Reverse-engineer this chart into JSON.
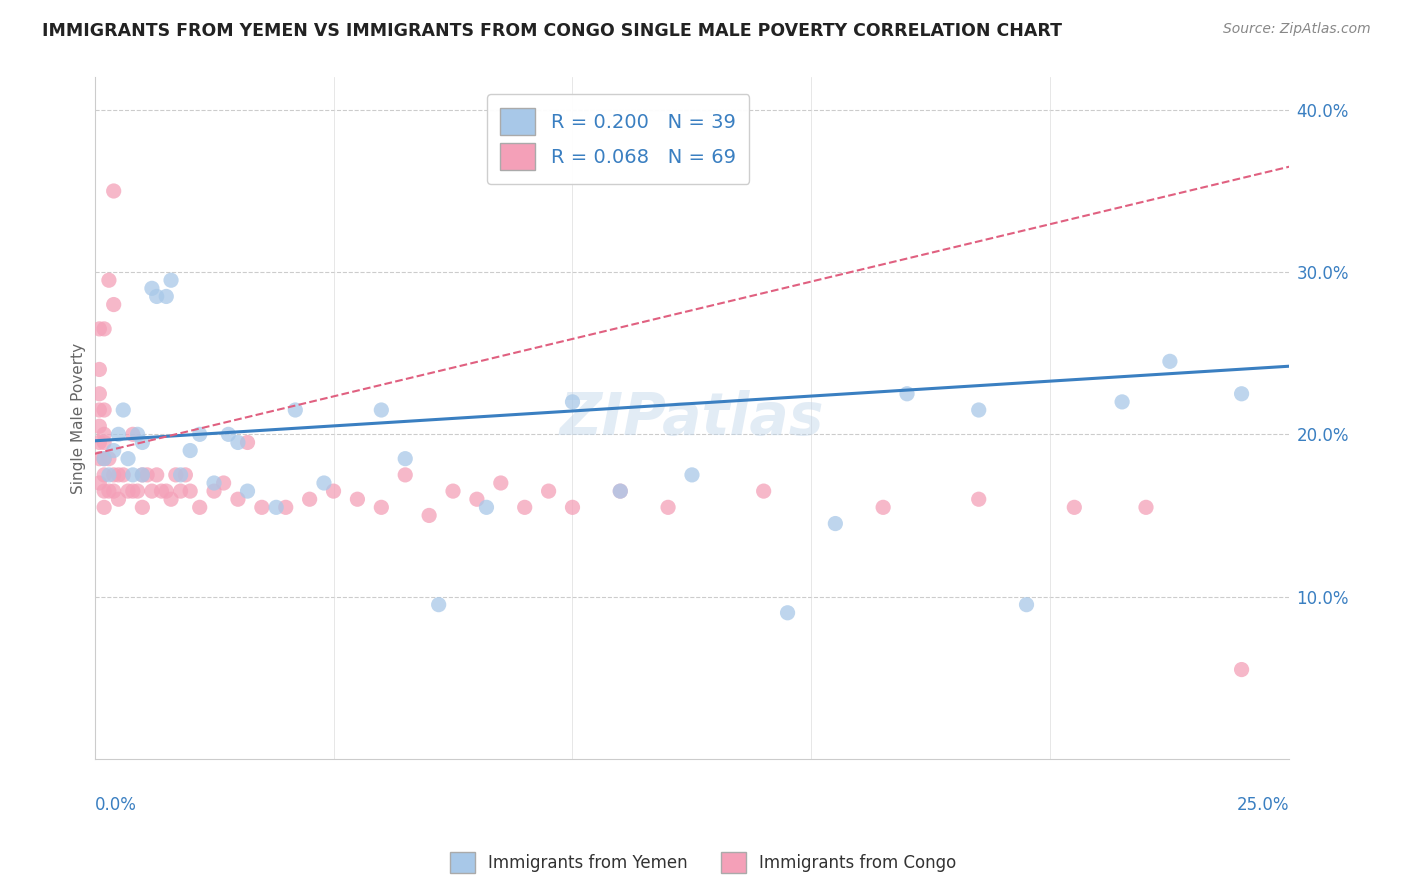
{
  "title": "IMMIGRANTS FROM YEMEN VS IMMIGRANTS FROM CONGO SINGLE MALE POVERTY CORRELATION CHART",
  "source": "Source: ZipAtlas.com",
  "ylabel": "Single Male Poverty",
  "xlim": [
    0.0,
    0.25
  ],
  "ylim": [
    0.0,
    0.42
  ],
  "yemen_R": 0.2,
  "yemen_N": 39,
  "congo_R": 0.068,
  "congo_N": 69,
  "yemen_color": "#a8c8e8",
  "congo_color": "#f4a0b8",
  "yemen_line_color": "#3a7fc1",
  "congo_line_color": "#e06080",
  "watermark": "ZIPatlas",
  "yemen_points_x": [
    0.002,
    0.003,
    0.004,
    0.005,
    0.006,
    0.007,
    0.008,
    0.009,
    0.01,
    0.01,
    0.012,
    0.013,
    0.015,
    0.016,
    0.018,
    0.02,
    0.022,
    0.025,
    0.028,
    0.03,
    0.032,
    0.038,
    0.042,
    0.048,
    0.06,
    0.065,
    0.072,
    0.082,
    0.1,
    0.11,
    0.125,
    0.145,
    0.155,
    0.17,
    0.185,
    0.195,
    0.215,
    0.225,
    0.24
  ],
  "yemen_points_y": [
    0.185,
    0.175,
    0.19,
    0.2,
    0.215,
    0.185,
    0.175,
    0.2,
    0.175,
    0.195,
    0.29,
    0.285,
    0.285,
    0.295,
    0.175,
    0.19,
    0.2,
    0.17,
    0.2,
    0.195,
    0.165,
    0.155,
    0.215,
    0.17,
    0.215,
    0.185,
    0.095,
    0.155,
    0.22,
    0.165,
    0.175,
    0.09,
    0.145,
    0.225,
    0.215,
    0.095,
    0.22,
    0.245,
    0.225
  ],
  "congo_points_x": [
    0.001,
    0.001,
    0.001,
    0.001,
    0.001,
    0.001,
    0.001,
    0.001,
    0.002,
    0.002,
    0.002,
    0.002,
    0.002,
    0.002,
    0.002,
    0.002,
    0.003,
    0.003,
    0.003,
    0.004,
    0.004,
    0.004,
    0.004,
    0.005,
    0.005,
    0.006,
    0.007,
    0.008,
    0.008,
    0.009,
    0.01,
    0.01,
    0.011,
    0.012,
    0.013,
    0.014,
    0.015,
    0.016,
    0.017,
    0.018,
    0.019,
    0.02,
    0.022,
    0.025,
    0.027,
    0.03,
    0.032,
    0.035,
    0.04,
    0.045,
    0.05,
    0.055,
    0.06,
    0.065,
    0.07,
    0.075,
    0.08,
    0.085,
    0.09,
    0.095,
    0.1,
    0.11,
    0.12,
    0.14,
    0.165,
    0.185,
    0.205,
    0.22,
    0.24
  ],
  "congo_points_y": [
    0.17,
    0.185,
    0.195,
    0.205,
    0.215,
    0.225,
    0.24,
    0.265,
    0.155,
    0.165,
    0.175,
    0.185,
    0.195,
    0.2,
    0.215,
    0.265,
    0.165,
    0.185,
    0.295,
    0.165,
    0.175,
    0.28,
    0.35,
    0.16,
    0.175,
    0.175,
    0.165,
    0.165,
    0.2,
    0.165,
    0.155,
    0.175,
    0.175,
    0.165,
    0.175,
    0.165,
    0.165,
    0.16,
    0.175,
    0.165,
    0.175,
    0.165,
    0.155,
    0.165,
    0.17,
    0.16,
    0.195,
    0.155,
    0.155,
    0.16,
    0.165,
    0.16,
    0.155,
    0.175,
    0.15,
    0.165,
    0.16,
    0.17,
    0.155,
    0.165,
    0.155,
    0.165,
    0.155,
    0.165,
    0.155,
    0.16,
    0.155,
    0.155,
    0.055
  ],
  "yemen_line_x0": 0.0,
  "yemen_line_y0": 0.196,
  "yemen_line_x1": 0.25,
  "yemen_line_y1": 0.242,
  "congo_line_x0": 0.0,
  "congo_line_y0": 0.188,
  "congo_line_x1": 0.25,
  "congo_line_y1": 0.365
}
